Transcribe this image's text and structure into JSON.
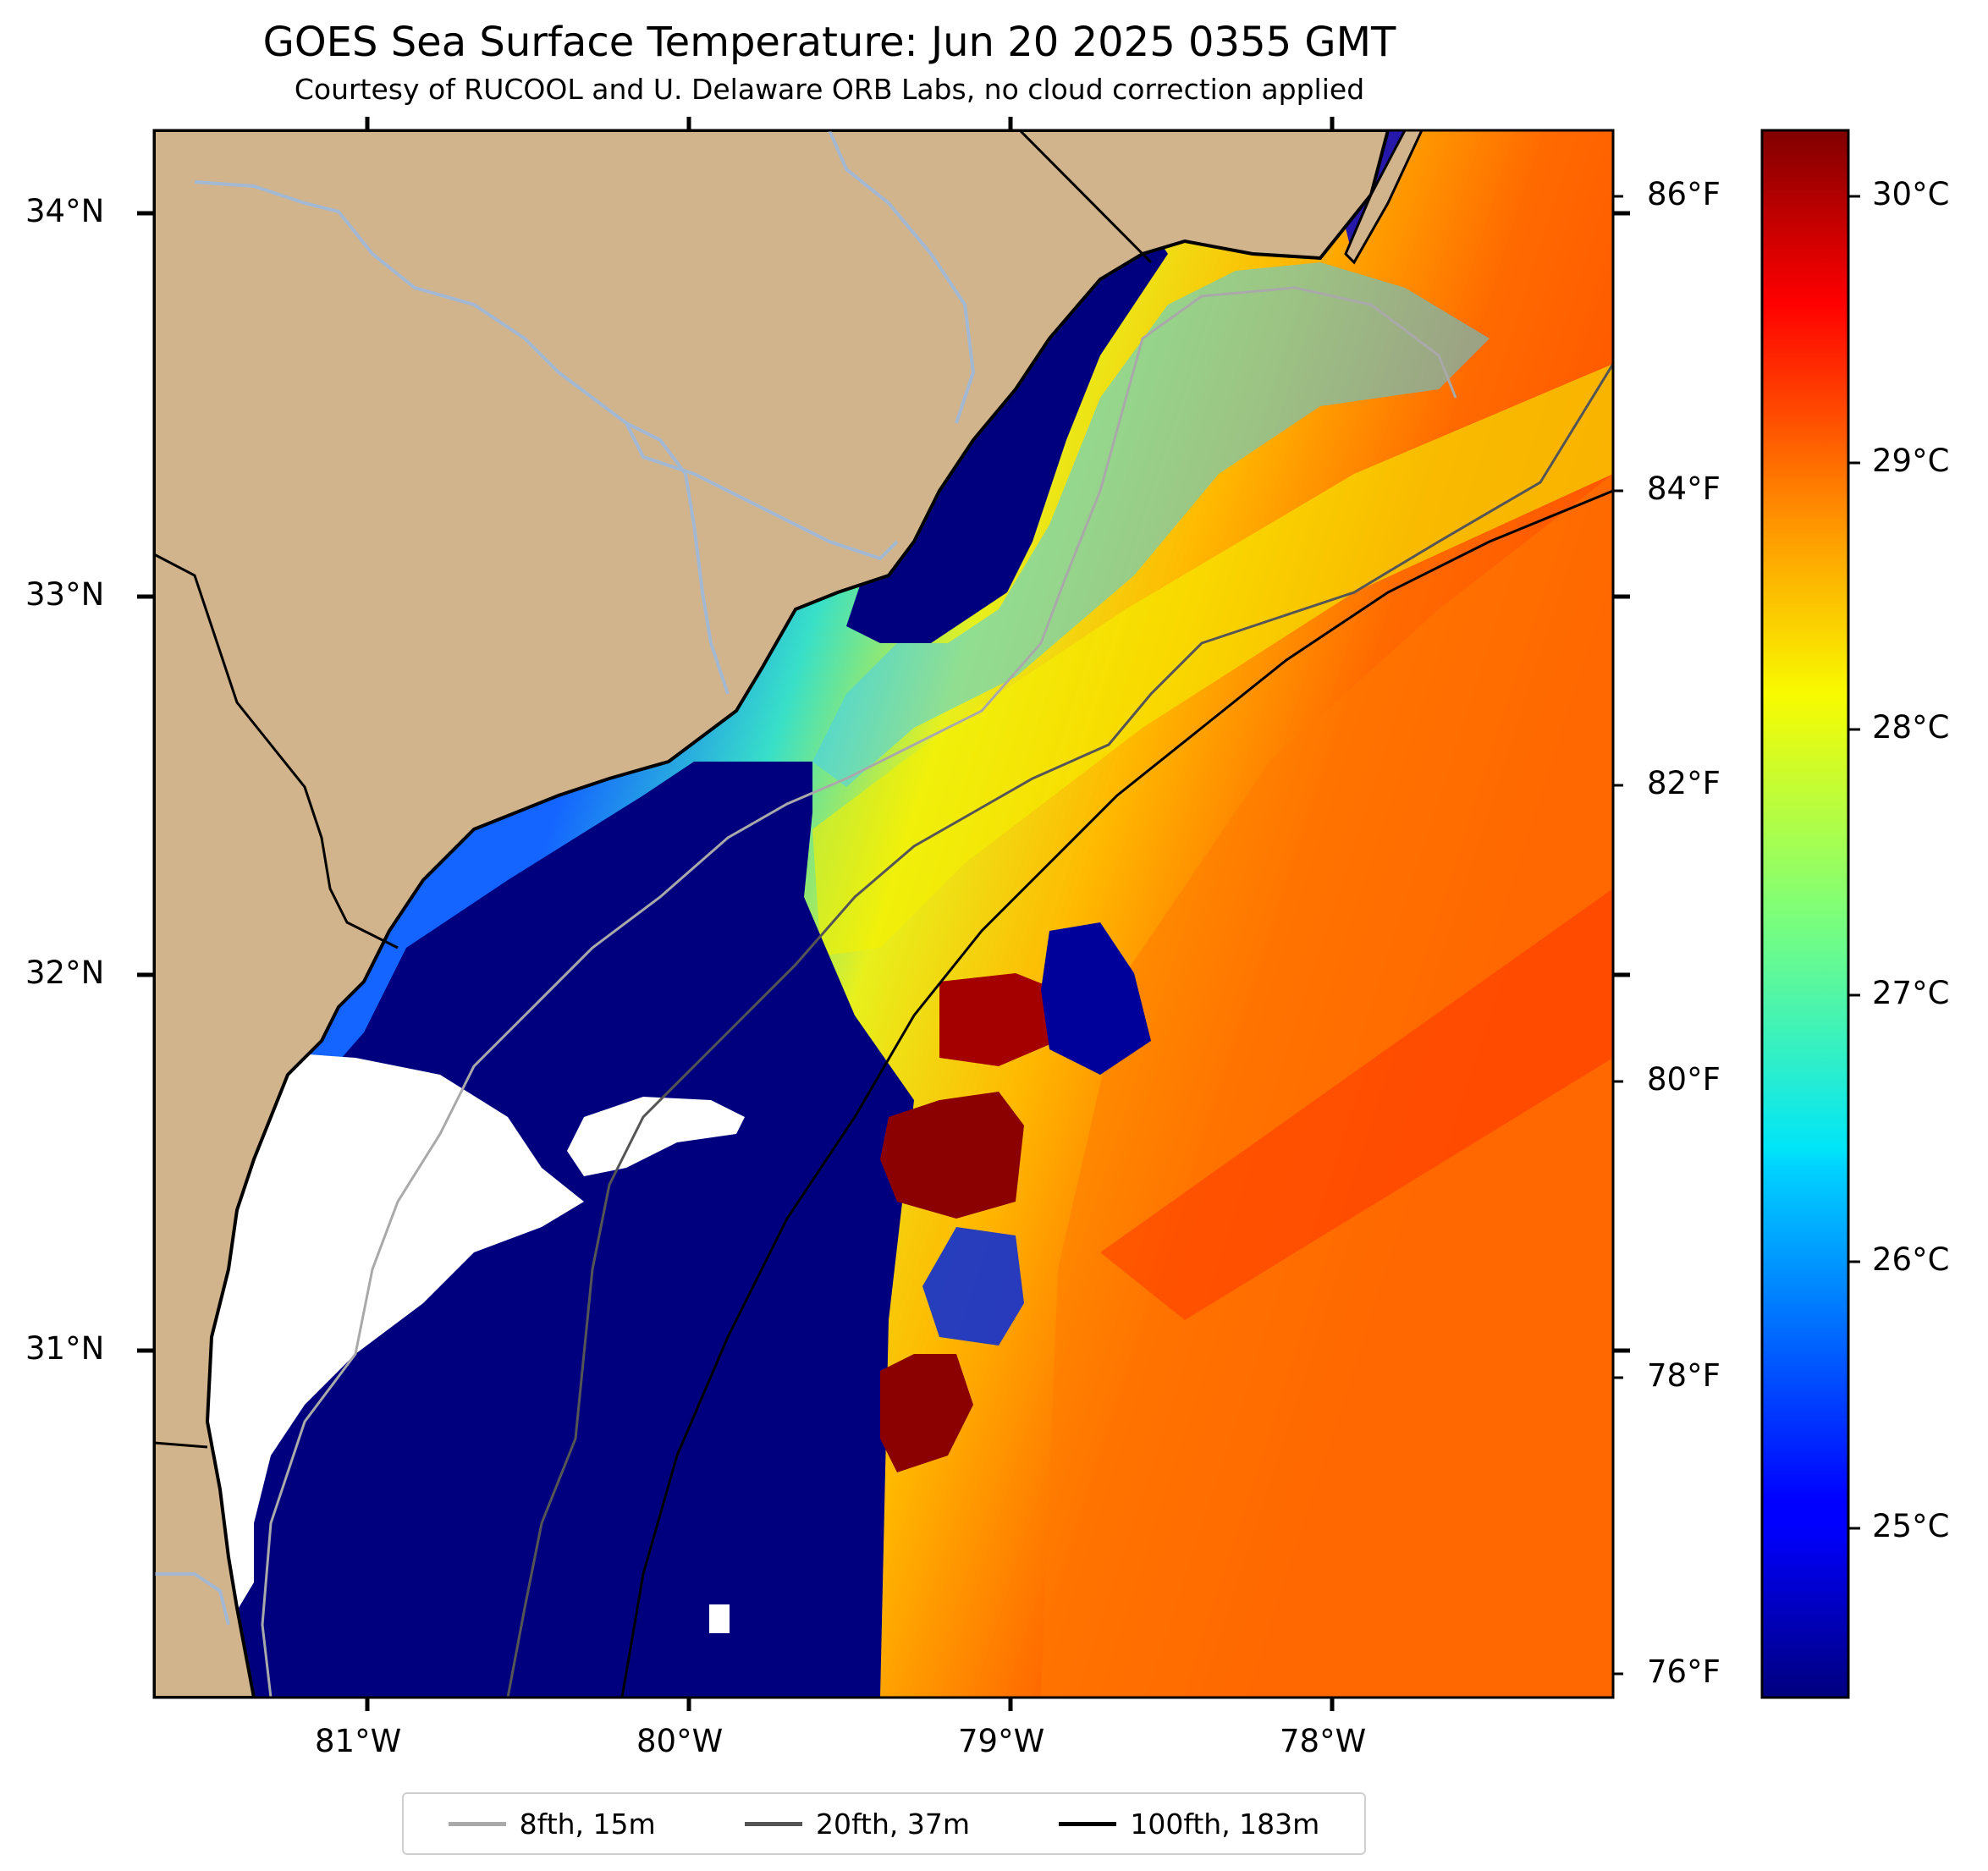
{
  "title": "GOES Sea Surface Temperature: Jun 20 2025 0355 GMT",
  "subtitle": "Courtesy of RUCOOL and U. Delaware ORB Labs, no cloud correction applied",
  "map": {
    "lon_range": [
      -81.67,
      -77.12
    ],
    "lat_range": [
      30.08,
      34.22
    ],
    "land_color": "#d2b48c",
    "river_color": "#a3b8d3",
    "nodata_color": "#ffffff",
    "lon_ticks": [
      "81°W",
      "80°W",
      "79°W",
      "78°W"
    ],
    "lat_ticks": [
      "34°N",
      "33°N",
      "32°N",
      "31°N"
    ]
  },
  "fahrenheit_axis": {
    "ticks": [
      "86°F",
      "84°F",
      "82°F",
      "80°F",
      "78°F",
      "76°F"
    ]
  },
  "colorbar": {
    "colormap": "jet",
    "range_c": [
      24.4,
      30.3
    ],
    "ticks": [
      "30°C",
      "29°C",
      "28°C",
      "27°C",
      "26°C",
      "25°C"
    ]
  },
  "legend": {
    "items": [
      {
        "label": "8fth, 15m",
        "color": "#a9a9a9"
      },
      {
        "label": "20fth, 37m",
        "color": "#555555"
      },
      {
        "label": "100fth, 183m",
        "color": "#000000"
      }
    ]
  }
}
